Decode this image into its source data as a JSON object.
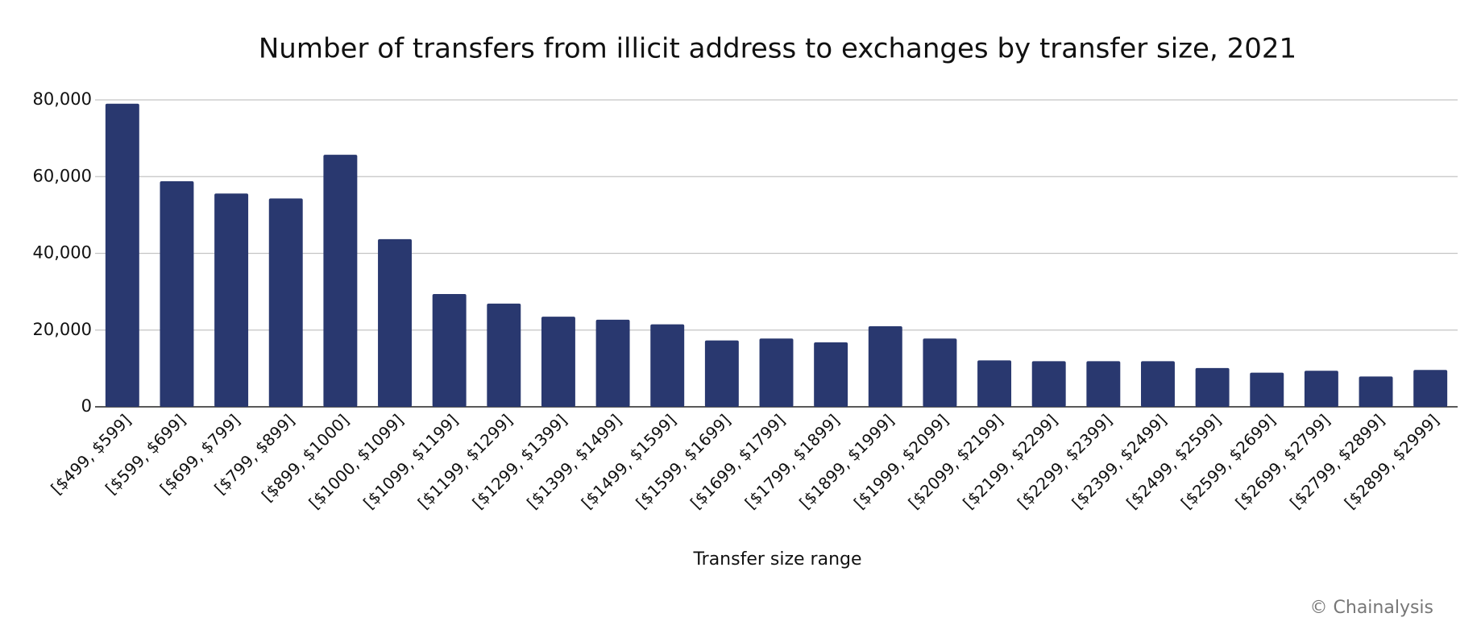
{
  "chart_data": {
    "type": "bar",
    "title": "Number of transfers from illicit address to exchanges by transfer size, 2021",
    "x_label": "Transfer size range",
    "credit": "© Chainalysis",
    "categories": [
      "[$499, $599]",
      "[$599, $699]",
      "[$699, $799]",
      "[$799, $899]",
      "[$899, $1000]",
      "[$1000, $1099]",
      "[$1099, $1199]",
      "[$1199, $1299]",
      "[$1299, $1399]",
      "[$1399, $1499]",
      "[$1499, $1599]",
      "[$1599, $1699]",
      "[$1699, $1799]",
      "[$1799, $1899]",
      "[$1899, $1999]",
      "[$1999, $2099]",
      "[$2099, $2199]",
      "[$2199, $2299]",
      "[$2299, $2399]",
      "[$2399, $2499]",
      "[$2499, $2599]",
      "[$2599, $2699]",
      "[$2699, $2799]",
      "[$2799, $2899]",
      "[$2899, $2999]"
    ],
    "values": [
      79000,
      58800,
      55600,
      54300,
      65700,
      43700,
      29400,
      26900,
      23500,
      22700,
      21500,
      17300,
      17800,
      16800,
      21000,
      17800,
      12100,
      11900,
      11900,
      11900,
      10100,
      8900,
      9400,
      7900,
      9600
    ],
    "color": "#29386f",
    "ylim": [
      0,
      80000
    ],
    "yticks": [
      0,
      {
        "value": 20000,
        "label": "20,000"
      },
      {
        "value": 40000,
        "label": "40,000"
      },
      {
        "value": 60000,
        "label": "60,000"
      },
      {
        "value": 80000,
        "label": "80,000"
      }
    ],
    "grid": true
  }
}
